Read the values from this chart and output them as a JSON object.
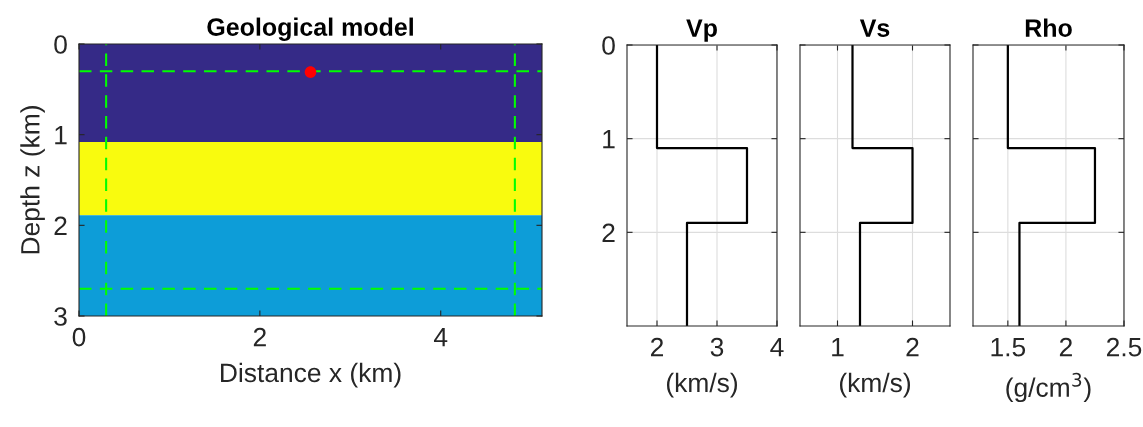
{
  "chart_data": [
    {
      "type": "scatter",
      "title": "Geological model",
      "xlabel": "Distance x (km)",
      "ylabel": "Depth z (km)",
      "xlim": [
        0,
        5.12
      ],
      "ylim": [
        3,
        0
      ],
      "xticks": [
        0,
        2,
        4
      ],
      "yticks": [
        0,
        1,
        2,
        3
      ],
      "grid": false,
      "legend": false,
      "marker": "circle",
      "series": [
        {
          "color": "#ff0000",
          "x": [
            2.56
          ],
          "values": [
            0.31
          ]
        }
      ],
      "bands": [
        {
          "axis": "y",
          "from": 0,
          "to": 1.08,
          "color": "#352a87"
        },
        {
          "axis": "y",
          "from": 1.08,
          "to": 1.89,
          "color": "#f9fb0e"
        },
        {
          "axis": "y",
          "from": 1.89,
          "to": 3,
          "color": "#0d9dd8"
        }
      ],
      "ref_lines": [
        {
          "axis": "x",
          "value": 0.3,
          "color": "#00ff00",
          "line_style": "dashed"
        },
        {
          "axis": "x",
          "value": 4.82,
          "color": "#00ff00",
          "line_style": "dashed"
        },
        {
          "axis": "y",
          "value": 0.3,
          "color": "#00ff00",
          "line_style": "dashed"
        },
        {
          "axis": "y",
          "value": 2.7,
          "color": "#00ff00",
          "line_style": "dashed"
        }
      ]
    },
    {
      "type": "line",
      "title": "Vp",
      "xlabel": "(km/s)",
      "xlim": [
        1.5,
        4
      ],
      "ylim": [
        3,
        0
      ],
      "xticks": [
        2,
        3,
        4
      ],
      "yticks": [
        0,
        1,
        2
      ],
      "grid": true,
      "legend": false,
      "marker": "none",
      "line_style": "solid",
      "series": [
        {
          "color": "#000000",
          "x": [
            2,
            2,
            3.5,
            3.5,
            2.5,
            2.5
          ],
          "values": [
            0,
            1.1,
            1.1,
            1.9,
            1.9,
            3
          ]
        }
      ]
    },
    {
      "type": "line",
      "title": "Vs",
      "xlabel": "(km/s)",
      "xlim": [
        0.5,
        2.5
      ],
      "ylim": [
        3,
        0
      ],
      "xticks": [
        1,
        2
      ],
      "yticks": [
        0,
        1,
        2
      ],
      "grid": true,
      "legend": false,
      "marker": "none",
      "line_style": "solid",
      "tick_labels": "x",
      "series": [
        {
          "color": "#000000",
          "x": [
            1.2,
            1.2,
            2,
            2,
            1.3,
            1.3
          ],
          "values": [
            0,
            1.1,
            1.1,
            1.9,
            1.9,
            3
          ]
        }
      ]
    },
    {
      "type": "line",
      "title": "Rho",
      "xlabel": "(g/cm$^{3}$)",
      "xlim": [
        1.2,
        2.5
      ],
      "ylim": [
        3,
        0
      ],
      "xticks": [
        1.5,
        2,
        2.5
      ],
      "yticks": [
        0,
        1,
        2
      ],
      "grid": true,
      "legend": false,
      "marker": "none",
      "line_style": "solid",
      "tick_labels": "x",
      "series": [
        {
          "color": "#000000",
          "x": [
            1.5,
            1.5,
            2.25,
            2.25,
            1.6,
            1.6
          ],
          "values": [
            0,
            1.1,
            1.1,
            1.9,
            1.9,
            3
          ]
        }
      ]
    }
  ]
}
